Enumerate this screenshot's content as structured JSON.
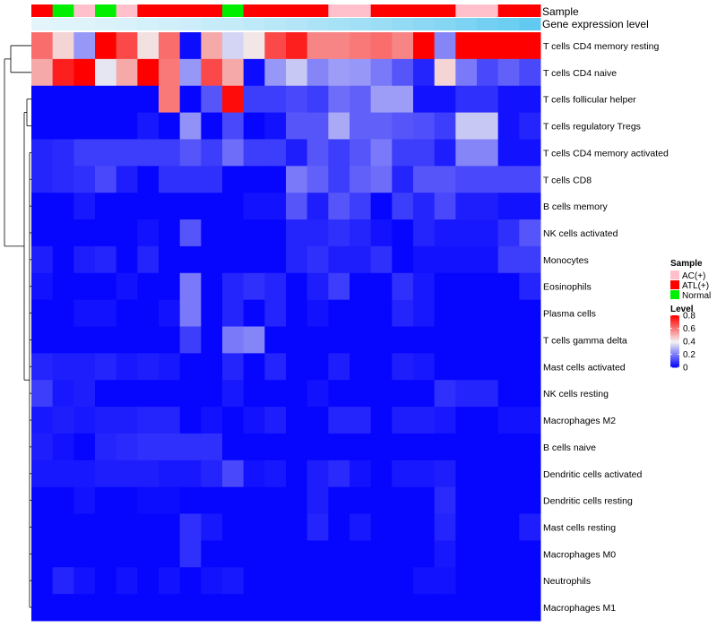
{
  "chart_data": {
    "type": "heatmap",
    "title": "",
    "n_columns": 24,
    "annotation_labels": {
      "sample": "Sample",
      "gene_expression": "Gene expression level"
    },
    "sample_annotation": [
      "ATL(+)",
      "Normal",
      "AC(+)",
      "Normal",
      "AC(+)",
      "ATL(+)",
      "ATL(+)",
      "ATL(+)",
      "ATL(+)",
      "Normal",
      "ATL(+)",
      "ATL(+)",
      "ATL(+)",
      "ATL(+)",
      "AC(+)",
      "AC(+)",
      "ATL(+)",
      "ATL(+)",
      "ATL(+)",
      "ATL(+)",
      "AC(+)",
      "AC(+)",
      "ATL(+)",
      "ATL(+)"
    ],
    "gene_expression_annotation": [
      0.02,
      0.04,
      0.06,
      0.08,
      0.1,
      0.13,
      0.16,
      0.19,
      0.22,
      0.25,
      0.29,
      0.33,
      0.37,
      0.41,
      0.45,
      0.5,
      0.55,
      0.6,
      0.65,
      0.7,
      0.76,
      0.82,
      0.88,
      0.95
    ],
    "rows": [
      "T cells CD4 memory resting",
      "T cells CD4 naive",
      "T cells follicular helper",
      "T cells regulatory  Tregs",
      "T cells CD4 memory activated",
      "T cells CD8",
      "B cells memory",
      "NK cells activated",
      "Monocytes",
      "Eosinophils",
      "Plasma cells",
      "T cells gamma delta",
      "Mast cells activated",
      "NK cells resting",
      "Macrophages M2",
      "B cells naive",
      "Dendritic cells activated",
      "Dendritic cells resting",
      "Mast cells resting",
      "Macrophages M0",
      "Neutrophils",
      "Macrophages M1"
    ],
    "values": [
      [
        0.62,
        0.45,
        0.25,
        0.82,
        0.68,
        0.43,
        0.62,
        0.02,
        0.52,
        0.35,
        0.42,
        0.68,
        0.75,
        0.58,
        0.58,
        0.6,
        0.62,
        0.58,
        0.85,
        0.22,
        0.82,
        0.82,
        0.82,
        0.82
      ],
      [
        0.52,
        0.75,
        0.82,
        0.38,
        0.52,
        0.82,
        0.6,
        0.25,
        0.68,
        0.52,
        0.02,
        0.25,
        0.33,
        0.22,
        0.26,
        0.25,
        0.2,
        0.14,
        0.06,
        0.45,
        0.2,
        0.12,
        0.16,
        0.12
      ],
      [
        0.01,
        0.01,
        0.01,
        0.01,
        0.01,
        0.01,
        0.6,
        0.01,
        0.14,
        0.78,
        0.1,
        0.1,
        0.12,
        0.1,
        0.18,
        0.16,
        0.26,
        0.26,
        0.03,
        0.03,
        0.08,
        0.08,
        0.03,
        0.03
      ],
      [
        0.01,
        0.01,
        0.01,
        0.01,
        0.01,
        0.04,
        0.01,
        0.24,
        0.01,
        0.12,
        0.01,
        0.03,
        0.14,
        0.14,
        0.28,
        0.16,
        0.16,
        0.14,
        0.13,
        0.1,
        0.33,
        0.33,
        0.03,
        0.06
      ],
      [
        0.06,
        0.07,
        0.1,
        0.1,
        0.1,
        0.1,
        0.1,
        0.14,
        0.1,
        0.18,
        0.1,
        0.1,
        0.05,
        0.14,
        0.1,
        0.14,
        0.2,
        0.1,
        0.1,
        0.05,
        0.22,
        0.22,
        0.03,
        0.03
      ],
      [
        0.06,
        0.07,
        0.08,
        0.12,
        0.05,
        0.01,
        0.08,
        0.08,
        0.08,
        0.01,
        0.01,
        0.01,
        0.2,
        0.16,
        0.1,
        0.16,
        0.18,
        0.06,
        0.14,
        0.14,
        0.12,
        0.12,
        0.12,
        0.12
      ],
      [
        0.01,
        0.01,
        0.04,
        0.01,
        0.01,
        0.01,
        0.01,
        0.01,
        0.01,
        0.01,
        0.03,
        0.03,
        0.14,
        0.05,
        0.14,
        0.1,
        0.01,
        0.1,
        0.06,
        0.12,
        0.05,
        0.05,
        0.03,
        0.03
      ],
      [
        0.01,
        0.01,
        0.01,
        0.01,
        0.01,
        0.03,
        0.01,
        0.14,
        0.01,
        0.01,
        0.01,
        0.01,
        0.06,
        0.06,
        0.08,
        0.06,
        0.03,
        0.01,
        0.06,
        0.04,
        0.04,
        0.04,
        0.08,
        0.14
      ],
      [
        0.05,
        0.01,
        0.05,
        0.06,
        0.01,
        0.06,
        0.01,
        0.01,
        0.01,
        0.01,
        0.01,
        0.01,
        0.06,
        0.08,
        0.05,
        0.05,
        0.08,
        0.01,
        0.03,
        0.03,
        0.03,
        0.03,
        0.1,
        0.1
      ],
      [
        0.03,
        0.01,
        0.01,
        0.01,
        0.03,
        0.01,
        0.01,
        0.2,
        0.01,
        0.06,
        0.08,
        0.06,
        0.01,
        0.05,
        0.1,
        0.01,
        0.01,
        0.08,
        0.04,
        0.01,
        0.01,
        0.01,
        0.01,
        0.06
      ],
      [
        0.01,
        0.01,
        0.03,
        0.03,
        0.01,
        0.01,
        0.03,
        0.2,
        0.01,
        0.06,
        0.01,
        0.06,
        0.01,
        0.03,
        0.01,
        0.01,
        0.01,
        0.06,
        0.04,
        0.01,
        0.01,
        0.01,
        0.01,
        0.01
      ],
      [
        0.01,
        0.01,
        0.01,
        0.01,
        0.01,
        0.01,
        0.01,
        0.1,
        0.01,
        0.2,
        0.22,
        0.01,
        0.01,
        0.01,
        0.01,
        0.01,
        0.01,
        0.01,
        0.01,
        0.01,
        0.01,
        0.01,
        0.01,
        0.01
      ],
      [
        0.06,
        0.05,
        0.05,
        0.06,
        0.04,
        0.05,
        0.04,
        0.01,
        0.01,
        0.06,
        0.01,
        0.06,
        0.01,
        0.01,
        0.05,
        0.01,
        0.01,
        0.05,
        0.04,
        0.01,
        0.01,
        0.01,
        0.01,
        0.01
      ],
      [
        0.1,
        0.04,
        0.05,
        0.01,
        0.01,
        0.01,
        0.01,
        0.01,
        0.01,
        0.04,
        0.01,
        0.01,
        0.01,
        0.03,
        0.01,
        0.01,
        0.01,
        0.01,
        0.01,
        0.08,
        0.06,
        0.06,
        0.01,
        0.01
      ],
      [
        0.04,
        0.05,
        0.04,
        0.05,
        0.05,
        0.06,
        0.06,
        0.01,
        0.03,
        0.01,
        0.03,
        0.05,
        0.01,
        0.01,
        0.06,
        0.06,
        0.01,
        0.05,
        0.05,
        0.04,
        0.01,
        0.01,
        0.03,
        0.03
      ],
      [
        0.05,
        0.03,
        0.01,
        0.06,
        0.07,
        0.08,
        0.08,
        0.08,
        0.08,
        0.01,
        0.01,
        0.01,
        0.01,
        0.01,
        0.01,
        0.01,
        0.01,
        0.01,
        0.01,
        0.01,
        0.01,
        0.01,
        0.01,
        0.01
      ],
      [
        0.04,
        0.04,
        0.04,
        0.05,
        0.05,
        0.05,
        0.04,
        0.04,
        0.06,
        0.12,
        0.03,
        0.04,
        0.01,
        0.05,
        0.07,
        0.03,
        0.01,
        0.04,
        0.04,
        0.05,
        0.01,
        0.01,
        0.01,
        0.01
      ],
      [
        0.01,
        0.01,
        0.03,
        0.01,
        0.01,
        0.02,
        0.02,
        0.01,
        0.01,
        0.01,
        0.01,
        0.01,
        0.01,
        0.05,
        0.01,
        0.01,
        0.01,
        0.01,
        0.01,
        0.07,
        0.01,
        0.01,
        0.01,
        0.01
      ],
      [
        0.01,
        0.01,
        0.01,
        0.01,
        0.01,
        0.01,
        0.01,
        0.08,
        0.04,
        0.01,
        0.01,
        0.01,
        0.01,
        0.06,
        0.01,
        0.04,
        0.01,
        0.01,
        0.01,
        0.06,
        0.01,
        0.01,
        0.01,
        0.05
      ],
      [
        0.01,
        0.01,
        0.01,
        0.01,
        0.01,
        0.01,
        0.01,
        0.08,
        0.01,
        0.01,
        0.01,
        0.01,
        0.01,
        0.01,
        0.01,
        0.01,
        0.01,
        0.01,
        0.01,
        0.04,
        0.01,
        0.01,
        0.01,
        0.01
      ],
      [
        0.01,
        0.06,
        0.03,
        0.01,
        0.03,
        0.01,
        0.03,
        0.01,
        0.03,
        0.04,
        0.01,
        0.01,
        0.01,
        0.01,
        0.01,
        0.01,
        0.01,
        0.01,
        0.03,
        0.03,
        0.01,
        0.01,
        0.01,
        0.01
      ],
      [
        0.01,
        0.01,
        0.01,
        0.01,
        0.01,
        0.01,
        0.01,
        0.01,
        0.01,
        0.01,
        0.01,
        0.01,
        0.01,
        0.01,
        0.01,
        0.01,
        0.01,
        0.01,
        0.01,
        0.01,
        0.01,
        0.01,
        0.01,
        0.01
      ]
    ],
    "legend": {
      "sample_title": "Sample",
      "sample_entries": [
        {
          "label": "AC(+)",
          "color": "#ffc0cb"
        },
        {
          "label": "ATL(+)",
          "color": "#ff0000"
        },
        {
          "label": "Normal",
          "color": "#00ee00"
        }
      ],
      "level_title": "Level",
      "level_ticks": [
        "0.8",
        "0.6",
        "0.4",
        "0.2",
        "0"
      ],
      "level_tick_values": [
        0.8,
        0.6,
        0.4,
        0.2,
        0
      ],
      "range": [
        0,
        0.8
      ],
      "position": "right"
    },
    "colorscale": {
      "low": "#0000ff",
      "mid": "#f2f2f2",
      "high": "#ff0000",
      "mid_value": 0.4
    },
    "annotation_colorscale": {
      "low": "#e6f6fb",
      "high": "#5bc8f0"
    },
    "row_dendrogram": true
  }
}
